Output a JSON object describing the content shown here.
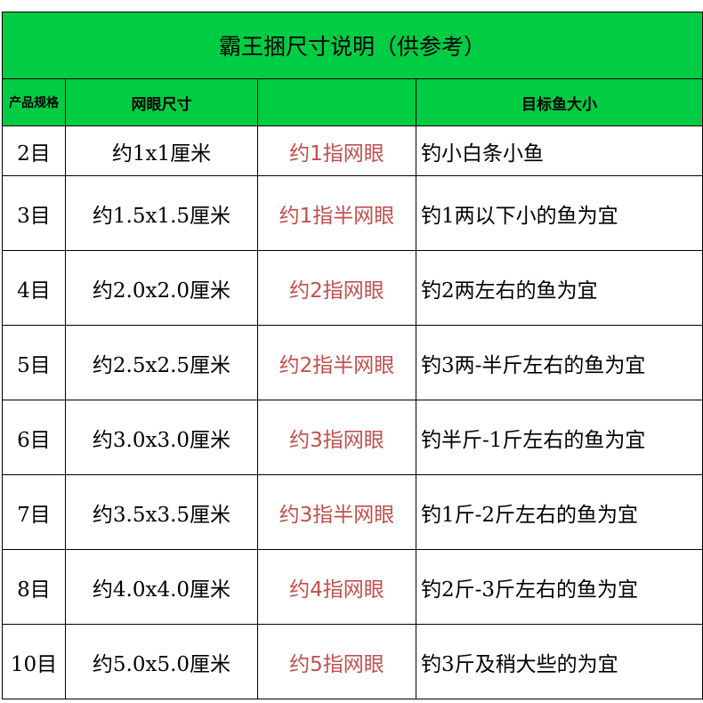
{
  "title": "霸王捆尺寸说明（供参考）",
  "headers": [
    "产品规格",
    "网眼尺寸",
    "",
    "目标鱼大小"
  ],
  "accent_color": "#00cc44",
  "highlight_text_color": "#c0504d",
  "rows": [
    {
      "spec": "2目",
      "mesh": "约1x1厘米",
      "finger": "约1指网眼",
      "fish": "钓小白条小鱼"
    },
    {
      "spec": "3目",
      "mesh": "约1.5x1.5厘米",
      "finger": "约1指半网眼",
      "fish": "钓1两以下小的鱼为宜"
    },
    {
      "spec": "4目",
      "mesh": "约2.0x2.0厘米",
      "finger": "约2指网眼",
      "fish": "钓2两左右的鱼为宜"
    },
    {
      "spec": "5目",
      "mesh": "约2.5x2.5厘米",
      "finger": "约2指半网眼",
      "fish": "钓3两-半斤左右的鱼为宜"
    },
    {
      "spec": "6目",
      "mesh": "约3.0x3.0厘米",
      "finger": "约3指网眼",
      "fish": "钓半斤-1斤左右的鱼为宜"
    },
    {
      "spec": "7目",
      "mesh": "约3.5x3.5厘米",
      "finger": "约3指半网眼",
      "fish": "钓1斤-2斤左右的鱼为宜"
    },
    {
      "spec": "8目",
      "mesh": "约4.0x4.0厘米",
      "finger": "约4指网眼",
      "fish": "钓2斤-3斤左右的鱼为宜"
    },
    {
      "spec": "10目",
      "mesh": "约5.0x5.0厘米",
      "finger": "约5指网眼",
      "fish": "钓3斤及稍大些的为宜"
    }
  ]
}
